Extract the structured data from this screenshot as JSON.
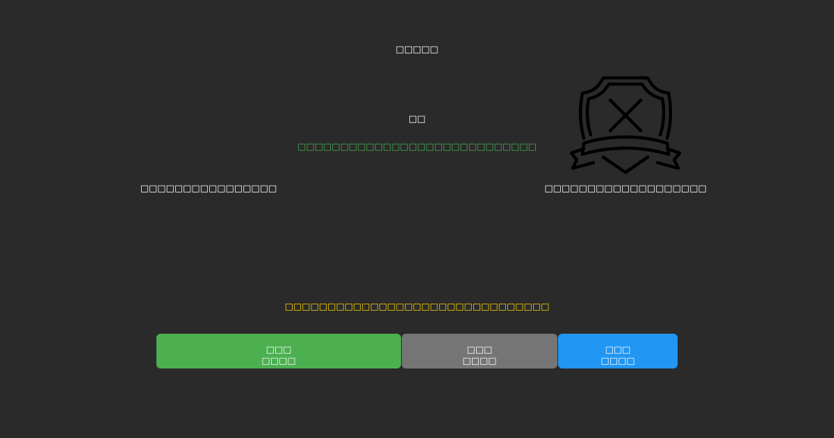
{
  "title": "□□□□□",
  "heading": "□□",
  "success_message": "□□□□□□□□□□□□□□□□□□□□□□□□□□□□",
  "left_label": "□□□□□□□□□□□□□□□□",
  "right_label": "□□□□□□□□□□□□□□□□□□□",
  "warning_message": "□□□□□□□□□□□□□□□□□□□□□□□□□□□□□□□",
  "icon": "shield-x-badge-icon",
  "buttons": [
    {
      "line1": "□□□",
      "line2": "□□□□",
      "color": "#4caf50"
    },
    {
      "line1": "□□□",
      "line2": "□□□□",
      "color": "#757575"
    },
    {
      "line1": "□□□",
      "line2": "□□□□",
      "color": "#2196f3"
    }
  ],
  "colors": {
    "background": "#2a2a2a",
    "success": "#4caf50",
    "warning": "#ffd600"
  }
}
